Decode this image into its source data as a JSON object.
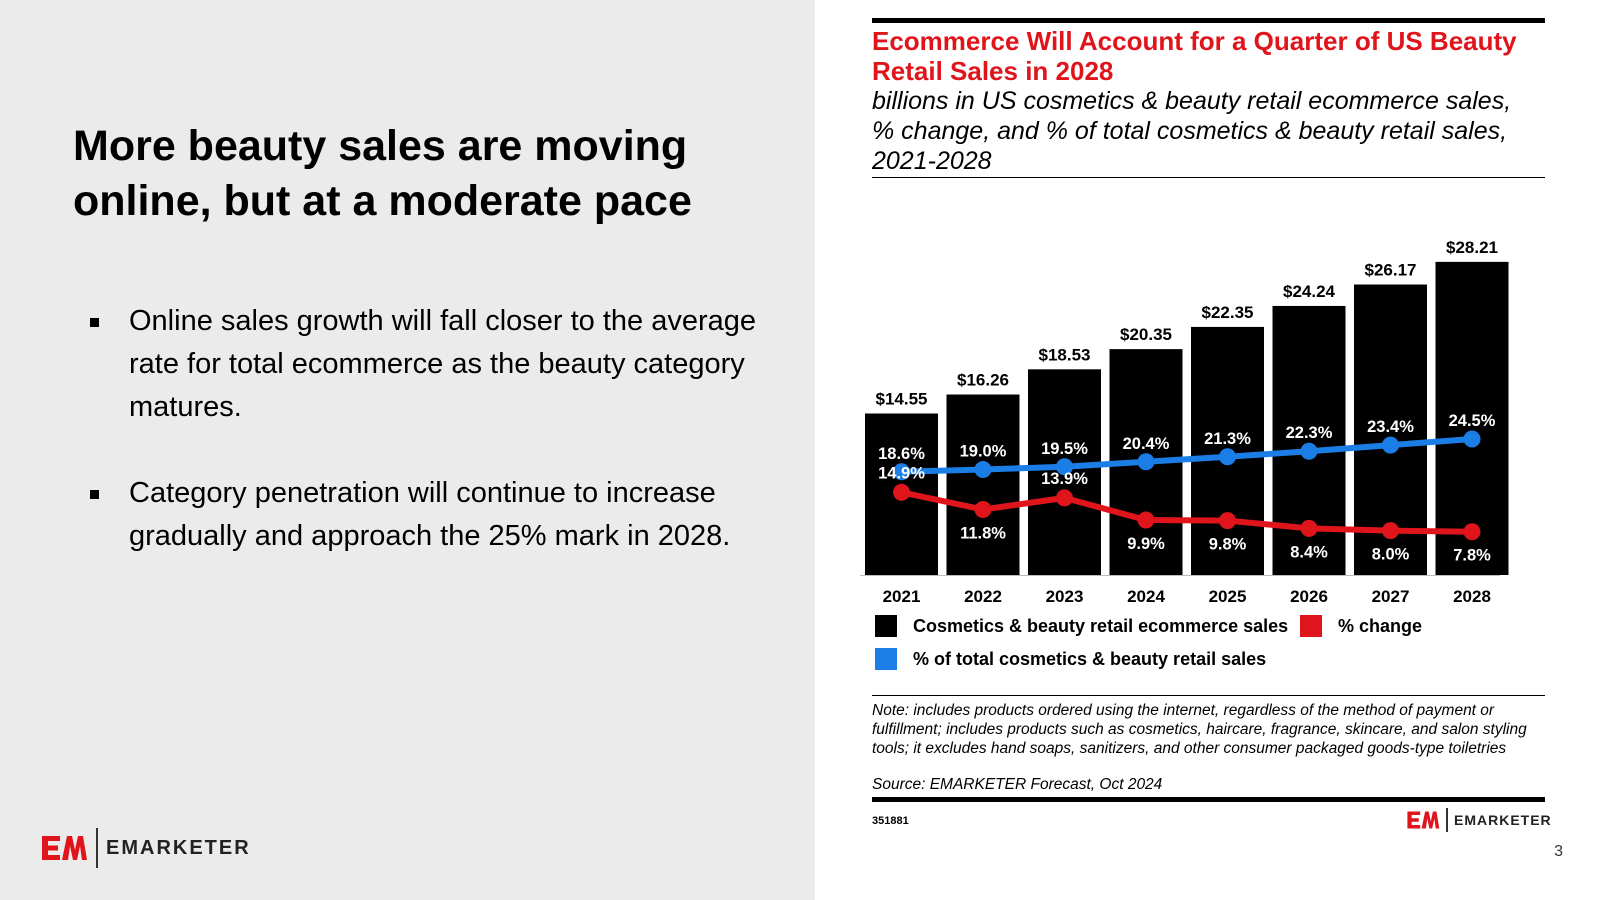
{
  "slide": {
    "heading": "More beauty sales are moving online, but at a moderate pace",
    "bullets": [
      "Online sales growth will fall closer to the average rate for total ecommerce as the beauty category matures.",
      "Category penetration will continue to increase gradually and approach the 25% mark in 2028."
    ],
    "page_number": "3"
  },
  "brand": {
    "logo_mark": "EM",
    "logo_word": "EMARKETER"
  },
  "chart_id": "351881",
  "chart_data": {
    "type": "bar",
    "title": "Ecommerce Will Account for a Quarter of US Beauty Retail Sales in 2028",
    "subtitle": "billions in US cosmetics & beauty retail ecommerce sales, % change, and % of total cosmetics & beauty retail sales, 2021-2028",
    "categories": [
      "2021",
      "2022",
      "2023",
      "2024",
      "2025",
      "2026",
      "2027",
      "2028"
    ],
    "series": [
      {
        "name": "Cosmetics & beauty retail ecommerce sales",
        "type": "bar",
        "color": "#000000",
        "values": [
          14.55,
          16.26,
          18.53,
          20.35,
          22.35,
          24.24,
          26.17,
          28.21
        ],
        "labels": [
          "$14.55",
          "$16.26",
          "$18.53",
          "$20.35",
          "$22.35",
          "$24.24",
          "$26.17",
          "$28.21"
        ]
      },
      {
        "name": "% change",
        "type": "line",
        "color": "#e0151b",
        "values": [
          14.9,
          11.8,
          13.9,
          9.9,
          9.8,
          8.4,
          8.0,
          7.8
        ],
        "labels": [
          "14.9%",
          "11.8%",
          "13.9%",
          "9.9%",
          "9.8%",
          "8.4%",
          "8.0%",
          "7.8%"
        ]
      },
      {
        "name": "% of total cosmetics & beauty retail sales",
        "type": "line",
        "color": "#1a7ee6",
        "values": [
          18.6,
          19.0,
          19.5,
          20.4,
          21.3,
          22.3,
          23.4,
          24.5
        ],
        "labels": [
          "18.6%",
          "19.0%",
          "19.5%",
          "20.4%",
          "21.3%",
          "22.3%",
          "23.4%",
          "24.5%"
        ]
      }
    ],
    "bar_ylim": [
      0,
      30
    ],
    "line_ylim": [
      0,
      60
    ],
    "grid": false,
    "legend_position": "bottom",
    "note": "Note: includes products ordered using the internet, regardless of the method of payment or fulfillment; includes products such as cosmetics, haircare, fragrance, skincare, and salon styling tools; it excludes hand soaps, sanitizers, and other consumer packaged goods-type toiletries",
    "source": "Source: EMARKETER Forecast, Oct 2024"
  }
}
